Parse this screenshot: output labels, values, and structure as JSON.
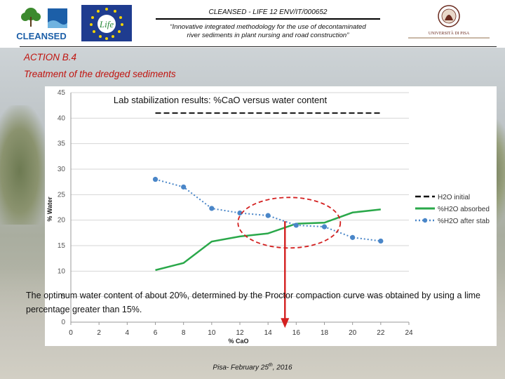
{
  "header": {
    "project_title": "CLEANSED - LIFE 12 ENV/IT/000652",
    "subtitle_line1": "“Innovative integrated methodology for the use of decontaminated",
    "subtitle_line2": "river sediments in plant nursing and road construction”",
    "logo_left_text": "CLEANSED",
    "logo_mid_text": "Life",
    "logo_right_text": "UNIVERSITÀ DI PISA"
  },
  "slide": {
    "action": "ACTION B.4",
    "subtitle": "Treatment of the dredged sediments",
    "caption": "The optimum water content of about 20%, determined by the Proctor compaction curve was obtained by using a lime percentage greater than 15%.",
    "footer_text": "Pisa- February 25",
    "footer_sup": "th",
    "footer_year": ", 2016"
  },
  "colors": {
    "title_red": "#c0140f",
    "absorbed_green": "#2aa84a",
    "after_stab_blue": "#4a86c8",
    "initial_black": "#111111",
    "highlight_red": "#d42020"
  },
  "chart_data": {
    "type": "line",
    "title": "Lab stabilization results: %CaO versus water content",
    "xlabel": "% CaO",
    "ylabel": "% Water",
    "xlim": [
      0,
      24
    ],
    "ylim": [
      0,
      45
    ],
    "xticks": [
      0,
      2,
      4,
      6,
      8,
      10,
      12,
      14,
      16,
      18,
      20,
      22,
      24
    ],
    "yticks": [
      0,
      5,
      10,
      15,
      20,
      25,
      30,
      35,
      40,
      45
    ],
    "grid": "horizontal",
    "legend_position": "right",
    "series": [
      {
        "name": "H2O initial",
        "style": "dashed",
        "x": [
          6,
          22
        ],
        "y": [
          41,
          41
        ]
      },
      {
        "name": "%H2O absorbed",
        "style": "solid",
        "x": [
          6,
          8,
          10,
          12,
          14,
          16,
          18,
          20,
          22
        ],
        "y": [
          10.2,
          11.6,
          15.8,
          16.8,
          17.4,
          19.3,
          19.5,
          21.5,
          22.1
        ]
      },
      {
        "name": "%H2O after stab",
        "style": "dotted-markers",
        "x": [
          6,
          8,
          10,
          12,
          14,
          16,
          18,
          20,
          22
        ],
        "y": [
          28,
          26.5,
          22.3,
          21.4,
          20.9,
          19,
          18.7,
          16.6,
          15.9
        ]
      }
    ],
    "annotation": {
      "ellipse_center": [
        15.5,
        19.5
      ],
      "arrow_x": 15.2,
      "arrow_from_y": 19.8,
      "arrow_to_y": -1
    }
  }
}
